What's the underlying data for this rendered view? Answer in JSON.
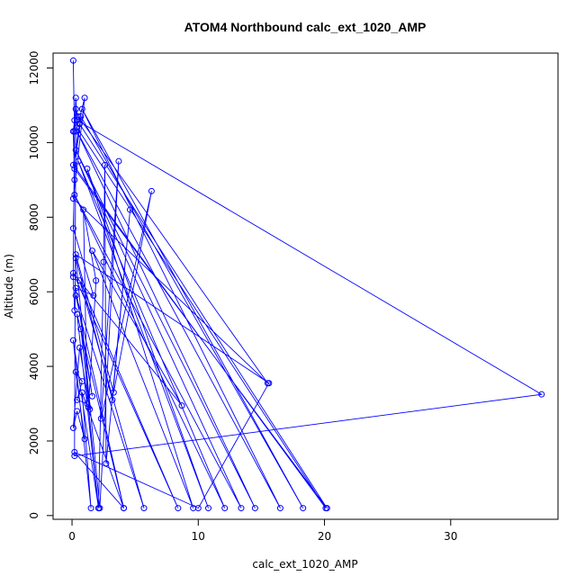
{
  "chart_data": {
    "type": "line",
    "title": "ATOM4 Northbound calc_ext_1020_AMP",
    "xlabel": "calc_ext_1020_AMP",
    "ylabel": "Altitude (m)",
    "xlim": [
      -1.5,
      38.5
    ],
    "ylim": [
      -100,
      12400
    ],
    "xticks": [
      0,
      10,
      20,
      30
    ],
    "yticks": [
      0,
      2000,
      4000,
      6000,
      8000,
      10000,
      12000
    ],
    "grid": false,
    "colors": {
      "series": "#0000ff"
    },
    "series": [
      {
        "markers": "open-circle",
        "points": [
          [
            0.1,
            12200
          ],
          [
            0.2,
            10300
          ],
          [
            0.3,
            11200
          ],
          [
            0.4,
            10600
          ],
          [
            37.2,
            3250
          ],
          [
            0.2,
            1600
          ],
          [
            0.3,
            10900
          ],
          [
            0.5,
            10700
          ],
          [
            15.5,
            3550
          ],
          [
            0.1,
            8500
          ],
          [
            1.0,
            11200
          ],
          [
            0.4,
            10400
          ],
          [
            20.1,
            200
          ],
          [
            0.1,
            9400
          ],
          [
            0.6,
            10500
          ],
          [
            20.2,
            200
          ],
          [
            0.2,
            9300
          ],
          [
            0.7,
            10700
          ],
          [
            18.3,
            200
          ],
          [
            0.8,
            10900
          ],
          [
            16.5,
            200
          ],
          [
            0.4,
            10300
          ],
          [
            14.5,
            200
          ],
          [
            0.3,
            9800
          ],
          [
            13.4,
            200
          ],
          [
            0.2,
            8600
          ],
          [
            12.1,
            200
          ],
          [
            0.5,
            9500
          ],
          [
            10.8,
            200
          ],
          [
            1.2,
            9300
          ],
          [
            9.6,
            200
          ],
          [
            1.6,
            7100
          ],
          [
            8.7,
            2950
          ],
          [
            0.1,
            6500
          ],
          [
            8.4,
            200
          ],
          [
            0.6,
            6300
          ],
          [
            5.7,
            200
          ],
          [
            0.3,
            5900
          ],
          [
            4.1,
            200
          ],
          [
            0.4,
            5400
          ],
          [
            2.1,
            200
          ],
          [
            0.1,
            4700
          ],
          [
            1.5,
            200
          ],
          [
            0.8,
            3300
          ],
          [
            4.1,
            200
          ],
          [
            0.2,
            1700
          ],
          [
            10.0,
            200
          ],
          [
            15.6,
            3550
          ],
          [
            0.3,
            7000
          ],
          [
            3.3,
            3300
          ],
          [
            6.3,
            8700
          ],
          [
            2.3,
            2600
          ],
          [
            3.7,
            9500
          ],
          [
            2.2,
            200
          ],
          [
            0.3,
            6900
          ],
          [
            3.2,
            3100
          ],
          [
            4.6,
            8200
          ],
          [
            2.7,
            1400
          ],
          [
            2.6,
            9400
          ],
          [
            2.5,
            6800
          ],
          [
            2.1,
            200
          ],
          [
            1.3,
            2900
          ],
          [
            1.9,
            6300
          ],
          [
            0.9,
            8200
          ],
          [
            1.2,
            3000
          ],
          [
            0.4,
            3100
          ],
          [
            0.8,
            3600
          ],
          [
            0.3,
            3850
          ],
          [
            1.0,
            2050
          ],
          [
            0.4,
            2800
          ],
          [
            0.1,
            2350
          ],
          [
            0.6,
            4500
          ],
          [
            1.4,
            2850
          ],
          [
            0.7,
            5000
          ],
          [
            1.6,
            3200
          ],
          [
            0.3,
            6100
          ],
          [
            1.7,
            5900
          ],
          [
            0.1,
            7700
          ],
          [
            0.2,
            9000
          ],
          [
            0.1,
            10300
          ],
          [
            0.2,
            10600
          ],
          [
            0.1,
            6400
          ],
          [
            0.2,
            5500
          ]
        ]
      }
    ]
  }
}
